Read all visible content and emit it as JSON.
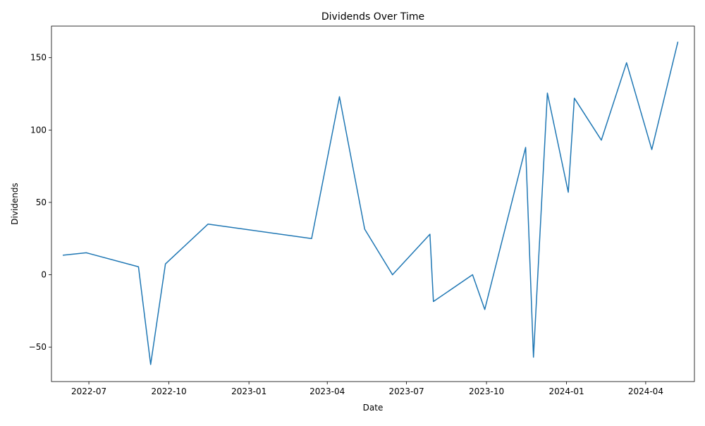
{
  "chart_data": {
    "type": "line",
    "title": "Dividends Over Time",
    "xlabel": "Date",
    "ylabel": "Dividends",
    "x_axis_type": "date",
    "xlim": [
      "2022-05-19",
      "2024-05-27"
    ],
    "ylim": [
      -73.8,
      171.8
    ],
    "x_ticks": [
      "2022-07-01",
      "2022-10-01",
      "2023-01-01",
      "2023-04-01",
      "2023-07-01",
      "2023-10-01",
      "2024-01-01",
      "2024-04-01"
    ],
    "x_tick_labels": [
      "2022-07",
      "2022-10",
      "2023-01",
      "2023-04",
      "2023-07",
      "2023-10",
      "2024-01",
      "2024-04"
    ],
    "y_ticks": [
      -50,
      0,
      50,
      100,
      150
    ],
    "y_tick_labels": [
      "−50",
      "0",
      "50",
      "100",
      "150"
    ],
    "grid": false,
    "line_color": "#1f77b4",
    "series": [
      {
        "points": [
          {
            "x": "2022-06-01",
            "y": 13.5
          },
          {
            "x": "2022-06-28",
            "y": 15.2
          },
          {
            "x": "2022-08-27",
            "y": 5.5
          },
          {
            "x": "2022-09-10",
            "y": -62.0
          },
          {
            "x": "2022-09-27",
            "y": 7.5
          },
          {
            "x": "2022-11-15",
            "y": 35.0
          },
          {
            "x": "2023-03-14",
            "y": 25.0
          },
          {
            "x": "2023-04-15",
            "y": 123.0
          },
          {
            "x": "2023-05-14",
            "y": 31.5
          },
          {
            "x": "2023-06-15",
            "y": 0.0
          },
          {
            "x": "2023-07-28",
            "y": 28.0
          },
          {
            "x": "2023-08-01",
            "y": -18.5
          },
          {
            "x": "2023-09-15",
            "y": 0.0
          },
          {
            "x": "2023-09-29",
            "y": -24.0
          },
          {
            "x": "2023-11-15",
            "y": 88.0
          },
          {
            "x": "2023-11-24",
            "y": -57.0
          },
          {
            "x": "2023-12-10",
            "y": 125.5
          },
          {
            "x": "2024-01-03",
            "y": 57.0
          },
          {
            "x": "2024-01-10",
            "y": 122.0
          },
          {
            "x": "2024-02-10",
            "y": 93.0
          },
          {
            "x": "2024-03-10",
            "y": 146.5
          },
          {
            "x": "2024-04-08",
            "y": 86.5
          },
          {
            "x": "2024-05-08",
            "y": 161.0
          }
        ]
      }
    ]
  }
}
